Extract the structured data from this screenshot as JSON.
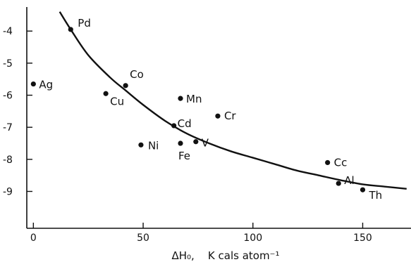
{
  "chart_data": {
    "type": "scatter",
    "title": "",
    "xlabel": "ΔH₀,    K cals atom⁻¹",
    "ylabel": "",
    "xlim": [
      -3,
      172
    ],
    "ylim": [
      -10.15,
      -3.25
    ],
    "x_ticks": [
      0,
      50,
      100,
      150
    ],
    "x_tick_labels": [
      "0",
      "50",
      "100",
      "150"
    ],
    "y_ticks": [
      -4,
      -5,
      -6,
      -7,
      -8,
      -9
    ],
    "y_tick_labels": [
      "-4",
      "-5",
      "-6",
      "-7",
      "-8",
      "-9"
    ],
    "grid": false,
    "legend": "none",
    "points": [
      {
        "label": "Pd",
        "x": 17,
        "y": -3.95
      },
      {
        "label": "Ag",
        "x": 0,
        "y": -5.65
      },
      {
        "label": "Co",
        "x": 42,
        "y": -5.7
      },
      {
        "label": "Cu",
        "x": 33,
        "y": -5.95
      },
      {
        "label": "Mn",
        "x": 67,
        "y": -6.1
      },
      {
        "label": "Cr",
        "x": 84,
        "y": -6.65
      },
      {
        "label": "Cd",
        "x": 64,
        "y": -6.95
      },
      {
        "label": "Ni",
        "x": 49,
        "y": -7.55
      },
      {
        "label": "Fe",
        "x": 67,
        "y": -7.5
      },
      {
        "label": "V",
        "x": 74,
        "y": -7.45
      },
      {
        "label": "Cc",
        "x": 134,
        "y": -8.1
      },
      {
        "label": "Al",
        "x": 139,
        "y": -8.75
      },
      {
        "label": "Th",
        "x": 150,
        "y": -8.95
      }
    ],
    "fit_curve": {
      "x": [
        12,
        17,
        25,
        35,
        42,
        50,
        60,
        70,
        80,
        90,
        100,
        110,
        120,
        130,
        140,
        150,
        160,
        170
      ],
      "y": [
        -3.4,
        -3.95,
        -4.75,
        -5.45,
        -5.85,
        -6.3,
        -6.8,
        -7.2,
        -7.5,
        -7.75,
        -7.95,
        -8.15,
        -8.35,
        -8.5,
        -8.65,
        -8.78,
        -8.85,
        -8.92
      ]
    },
    "colors": {
      "ink": "#111111",
      "background": "#ffffff"
    }
  }
}
